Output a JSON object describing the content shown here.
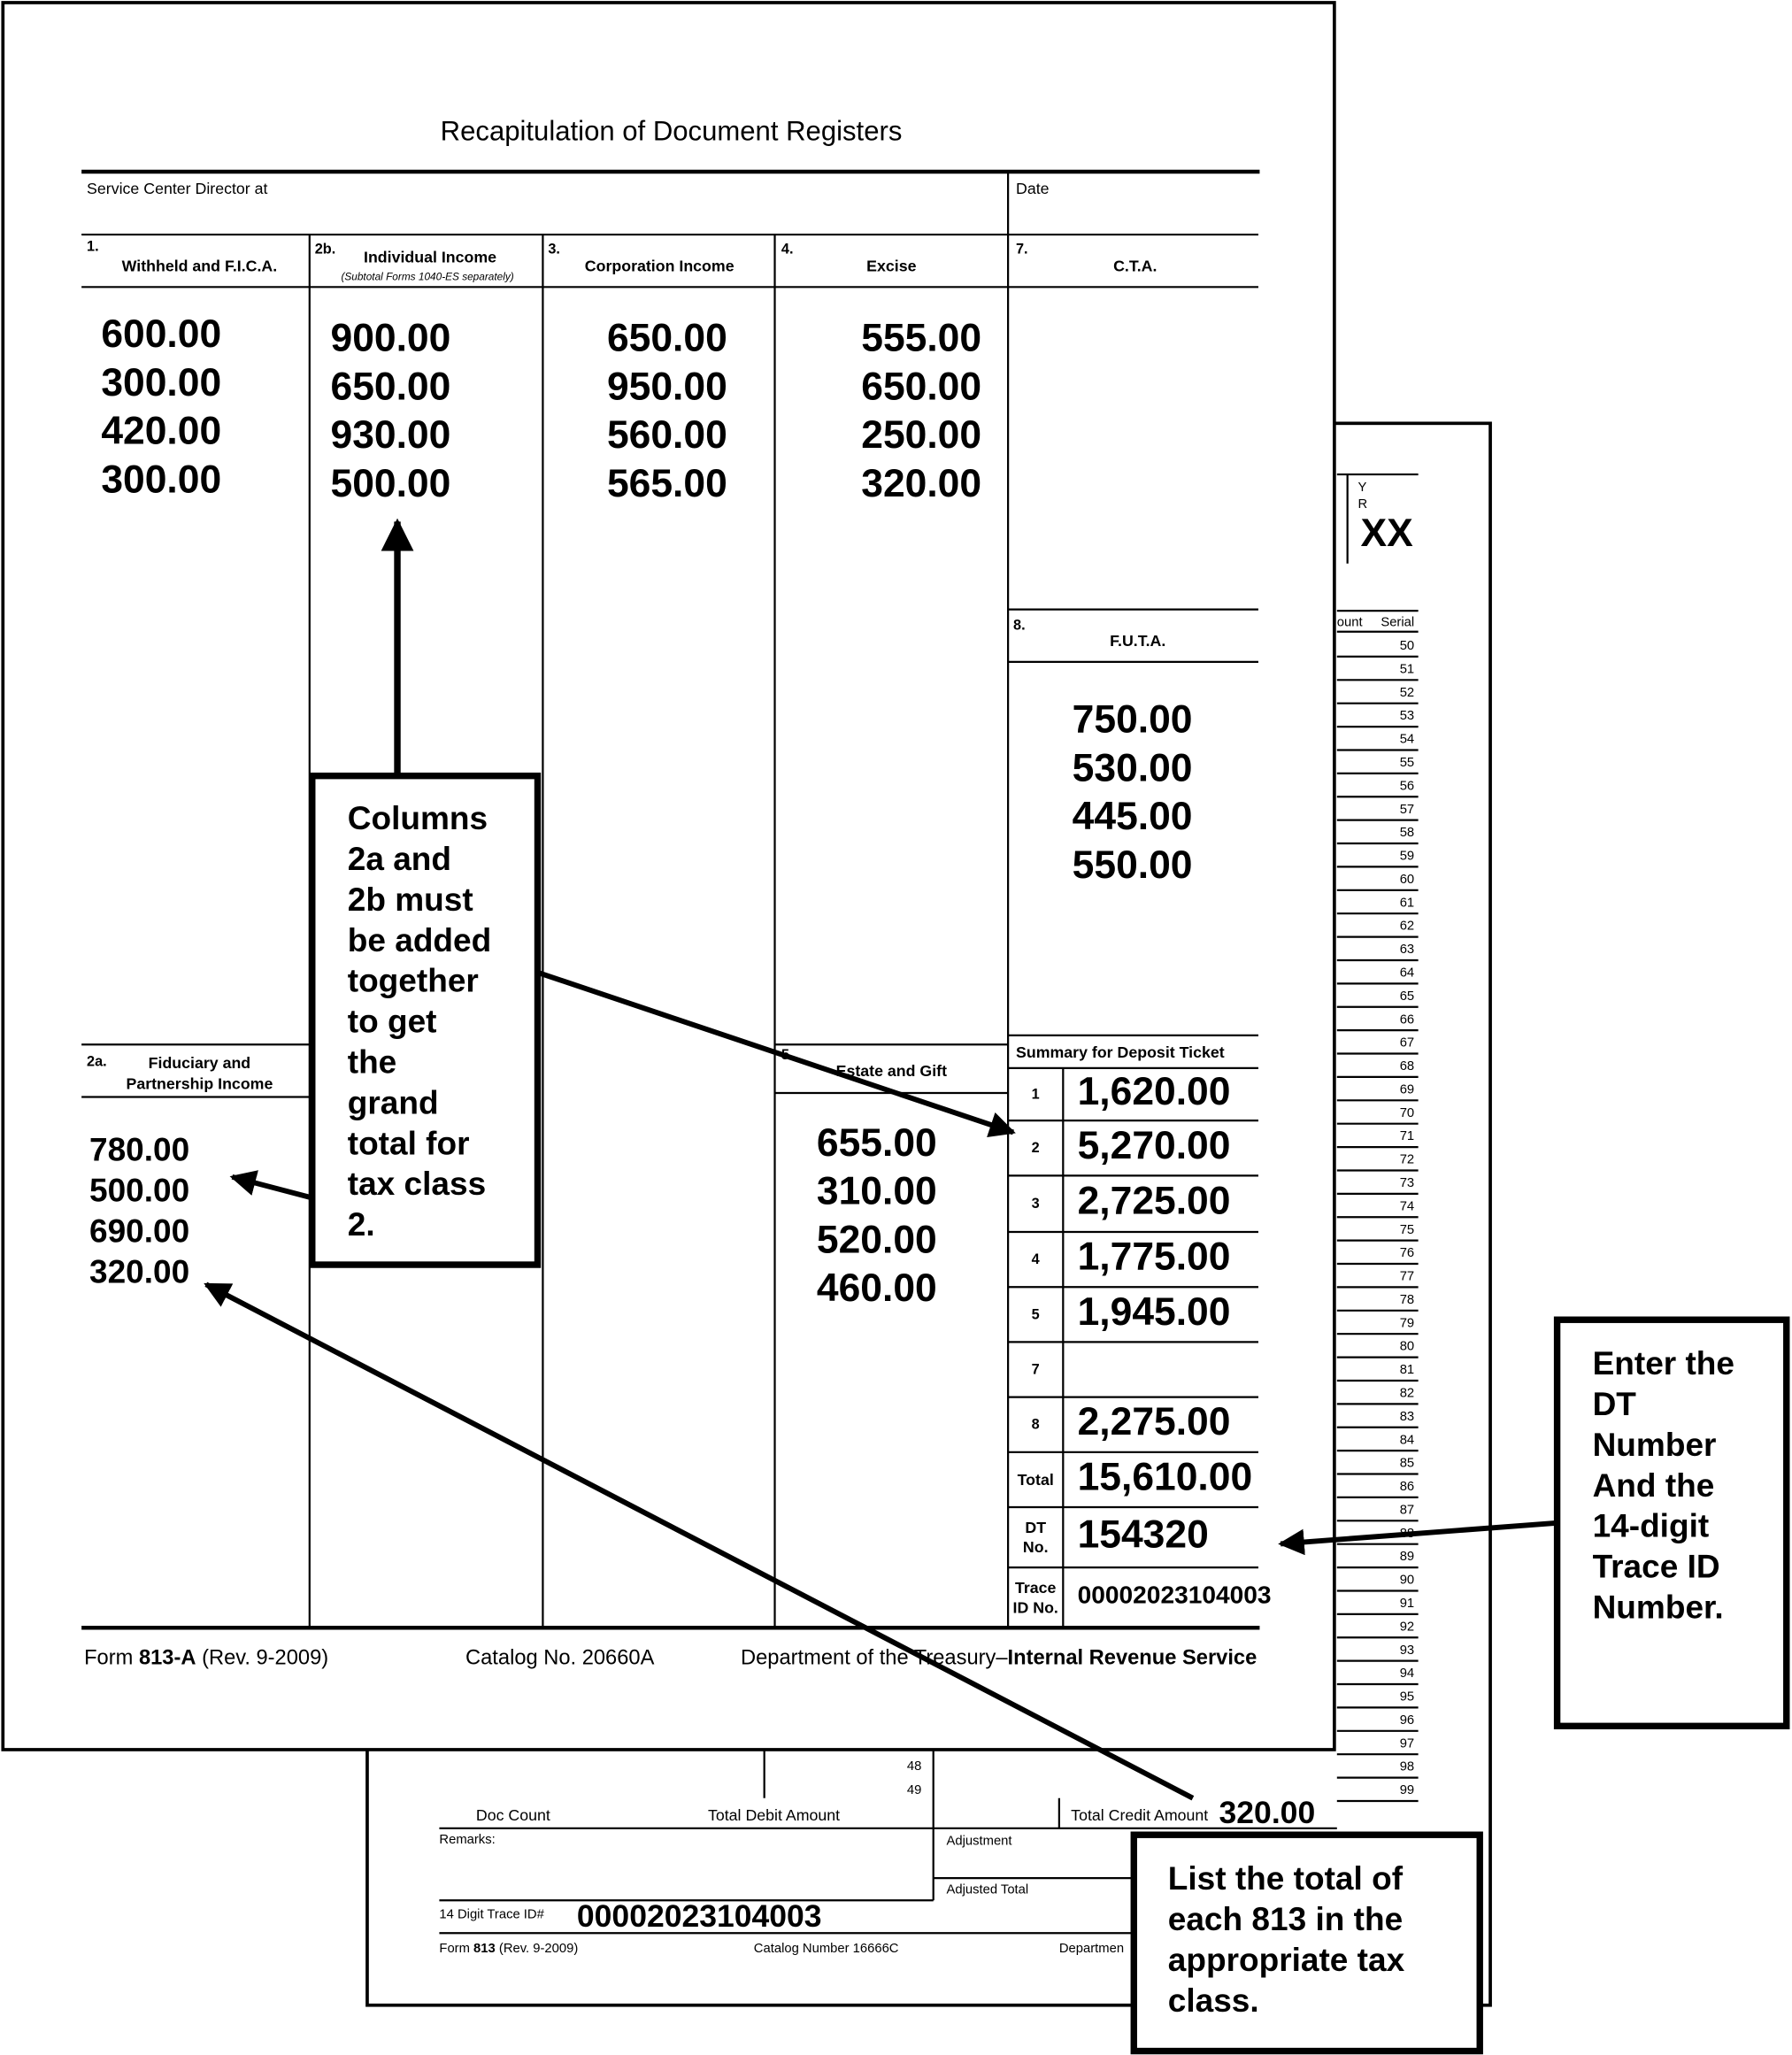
{
  "back_form": {
    "yr_label": [
      "Y",
      "R"
    ],
    "yr_value": "XX",
    "count_header": "ount",
    "serial_header": "Serial",
    "row_numbers": [
      48,
      49
    ],
    "serials": [
      50,
      51,
      52,
      53,
      54,
      55,
      56,
      57,
      58,
      59,
      60,
      61,
      62,
      63,
      64,
      65,
      66,
      67,
      68,
      69,
      70,
      71,
      72,
      73,
      74,
      75,
      76,
      77,
      78,
      79,
      80,
      81,
      82,
      83,
      84,
      85,
      86,
      87,
      88,
      89,
      90,
      91,
      92,
      93,
      94,
      95,
      96,
      97,
      98,
      99
    ],
    "doc_count": "Doc Count",
    "total_debit": "Total Debit Amount",
    "total_credit": "Total Credit Amount",
    "total_credit_value": "320.00",
    "remarks": "Remarks:",
    "adjustment": "Adjustment",
    "adjusted_total": "Adjusted Total",
    "trace_label": "14 Digit Trace ID#",
    "trace_value": "00002023104003",
    "footer": {
      "form_prefix": "Form",
      "form_number": "813",
      "revision": "(Rev. 9-2009)",
      "catalog": "Catalog Number 16666C",
      "department": "Departmen"
    }
  },
  "front_form": {
    "title": "Recapitulation of Document Registers",
    "service_center": "Service Center Director at",
    "date": "Date",
    "columns": [
      {
        "number": "1.",
        "label": [
          "Withheld and F.I.C.A."
        ],
        "values": [
          "600.00",
          "300.00",
          "420.00",
          "300.00"
        ]
      },
      {
        "number": "2b.",
        "label": [
          "Individual Income"
        ],
        "subtitle": "(Subtotal Forms 1040-ES separately)",
        "values": [
          "900.00",
          "650.00",
          "930.00",
          "500.00"
        ]
      },
      {
        "number": "3.",
        "label": [
          "Corporation Income"
        ],
        "values": [
          "650.00",
          "950.00",
          "560.00",
          "565.00"
        ]
      },
      {
        "number": "4.",
        "label": [
          "Excise"
        ],
        "values": [
          "555.00",
          "650.00",
          "250.00",
          "320.00"
        ]
      },
      {
        "number": "7.",
        "label": [
          "C.T.A."
        ]
      },
      {
        "number": "8.",
        "label": [
          "F.U.T.A."
        ],
        "values": [
          "750.00",
          "530.00",
          "445.00",
          "550.00"
        ]
      },
      {
        "number": "2a.",
        "label": [
          "Fiduciary and",
          "Partnership Income"
        ],
        "values": [
          "780.00",
          "500.00",
          "690.00",
          "320.00"
        ]
      },
      {
        "number": "5.",
        "label": [
          "Estate and Gift"
        ],
        "values": [
          "655.00",
          "310.00",
          "520.00",
          "460.00"
        ]
      }
    ],
    "summary": {
      "heading": "Summary for Deposit Ticket",
      "rows": [
        {
          "label": [
            "1"
          ],
          "amount": "1,620.00"
        },
        {
          "label": [
            "2"
          ],
          "amount": "5,270.00"
        },
        {
          "label": [
            "3"
          ],
          "amount": "2,725.00"
        },
        {
          "label": [
            "4"
          ],
          "amount": "1,775.00"
        },
        {
          "label": [
            "5"
          ],
          "amount": "1,945.00"
        },
        {
          "label": [
            "7"
          ]
        },
        {
          "label": [
            "8"
          ],
          "amount": "2,275.00"
        },
        {
          "label": [
            "Total"
          ],
          "amount": "15,610.00"
        },
        {
          "label": [
            "DT",
            "No."
          ],
          "amount": "154320"
        },
        {
          "label": [
            "Trace",
            "ID No."
          ],
          "amount": "00002023104003"
        }
      ]
    },
    "footer": {
      "form_prefix": "Form",
      "form_number": "813-A",
      "revision": "(Rev. 9-2009)",
      "catalog": "Catalog No. 20660A",
      "department": "Department of the Treasury–",
      "agency": "Internal Revenue Service"
    }
  },
  "callouts": [
    {
      "lines": [
        "Columns",
        "2a and",
        "2b must",
        "be added",
        "together",
        "to get",
        "the",
        "grand",
        "total for",
        "tax class",
        "2."
      ]
    },
    {
      "lines": [
        "Enter the",
        "DT",
        "Number",
        "And the",
        "14-digit",
        "Trace ID",
        "Number."
      ]
    },
    {
      "lines": [
        "List the total of",
        "each 813 in the",
        "appropriate tax",
        "class."
      ]
    }
  ]
}
